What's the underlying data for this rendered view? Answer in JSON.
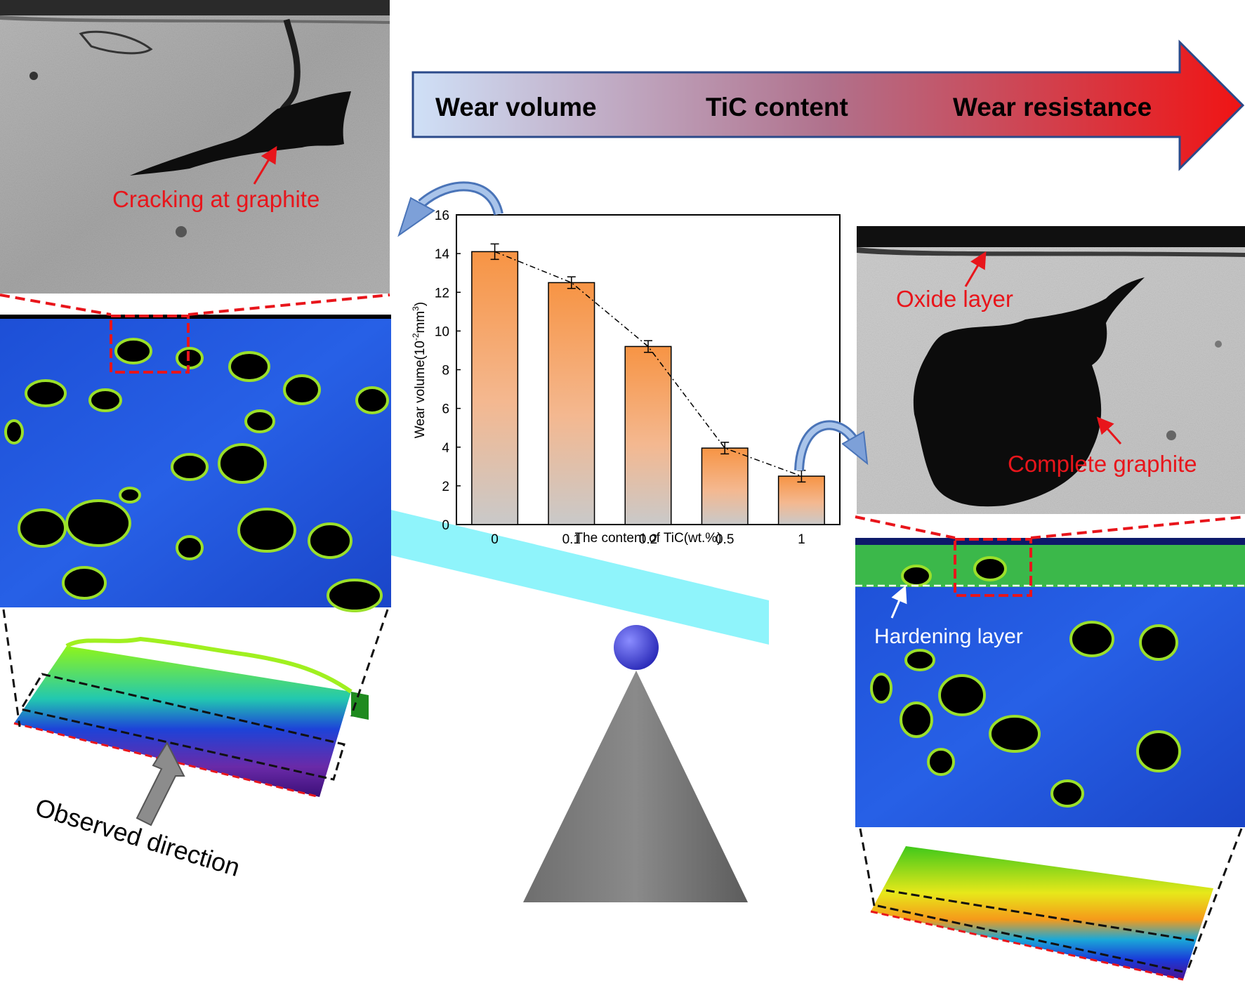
{
  "banner": {
    "wear_volume": "Wear volume",
    "tic_content": "TiC content",
    "wear_resistance": "Wear resistance"
  },
  "annotations": {
    "cracking": "Cracking at graphite",
    "oxide": "Oxide layer",
    "complete": "Complete graphite",
    "hardening": "Hardening layer",
    "observed": "Observed direction"
  },
  "colors": {
    "accent_red": "#e8151b",
    "ebsd_blue": "#1f4fd8",
    "seesaw_cyan": "#8ff4fb",
    "bar_top": "#f7964a",
    "bar_bottom": "#c9c9c9"
  },
  "chart_data": {
    "type": "bar",
    "categories": [
      "0",
      "0.1",
      "0.2",
      "0.5",
      "1"
    ],
    "values": [
      14.1,
      12.5,
      9.2,
      3.95,
      2.5
    ],
    "errors": [
      0.4,
      0.3,
      0.3,
      0.3,
      0.3
    ],
    "xlabel": "The content of TiC(wt.%)",
    "ylabel_main": "Wear volume(10",
    "ylabel_sup1": "-2",
    "ylabel_mid": "mm",
    "ylabel_sup2": "3",
    "ylabel_end": ")",
    "ylim": [
      0,
      16
    ],
    "yticks": [
      "0",
      "2",
      "4",
      "6",
      "8",
      "10",
      "12",
      "14",
      "16"
    ],
    "trend_line": "dash-dot"
  }
}
